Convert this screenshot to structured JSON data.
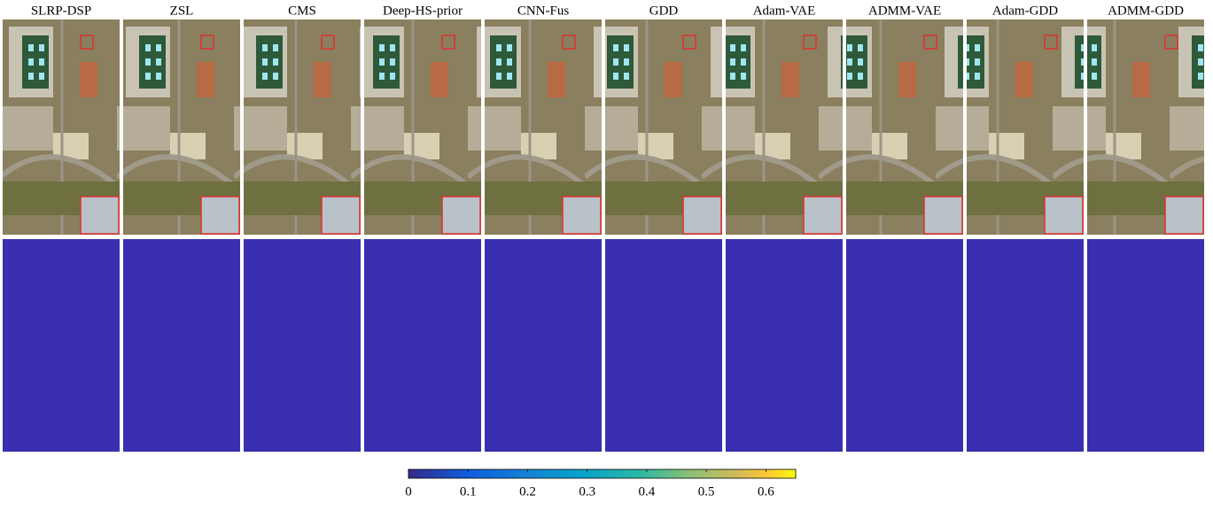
{
  "figure": {
    "methods": [
      "SLRP-DSP",
      "ZSL",
      "CMS",
      "Deep-HS-prior",
      "CNN-Fus",
      "GDD",
      "Adam-VAE",
      "ADMM-VAE",
      "Adam-GDD",
      "ADMM-GDD"
    ],
    "colorbar": {
      "range": [
        0,
        0.65
      ],
      "ticks": [
        0,
        0.1,
        0.2,
        0.3,
        0.4,
        0.5,
        0.6
      ]
    }
  }
}
